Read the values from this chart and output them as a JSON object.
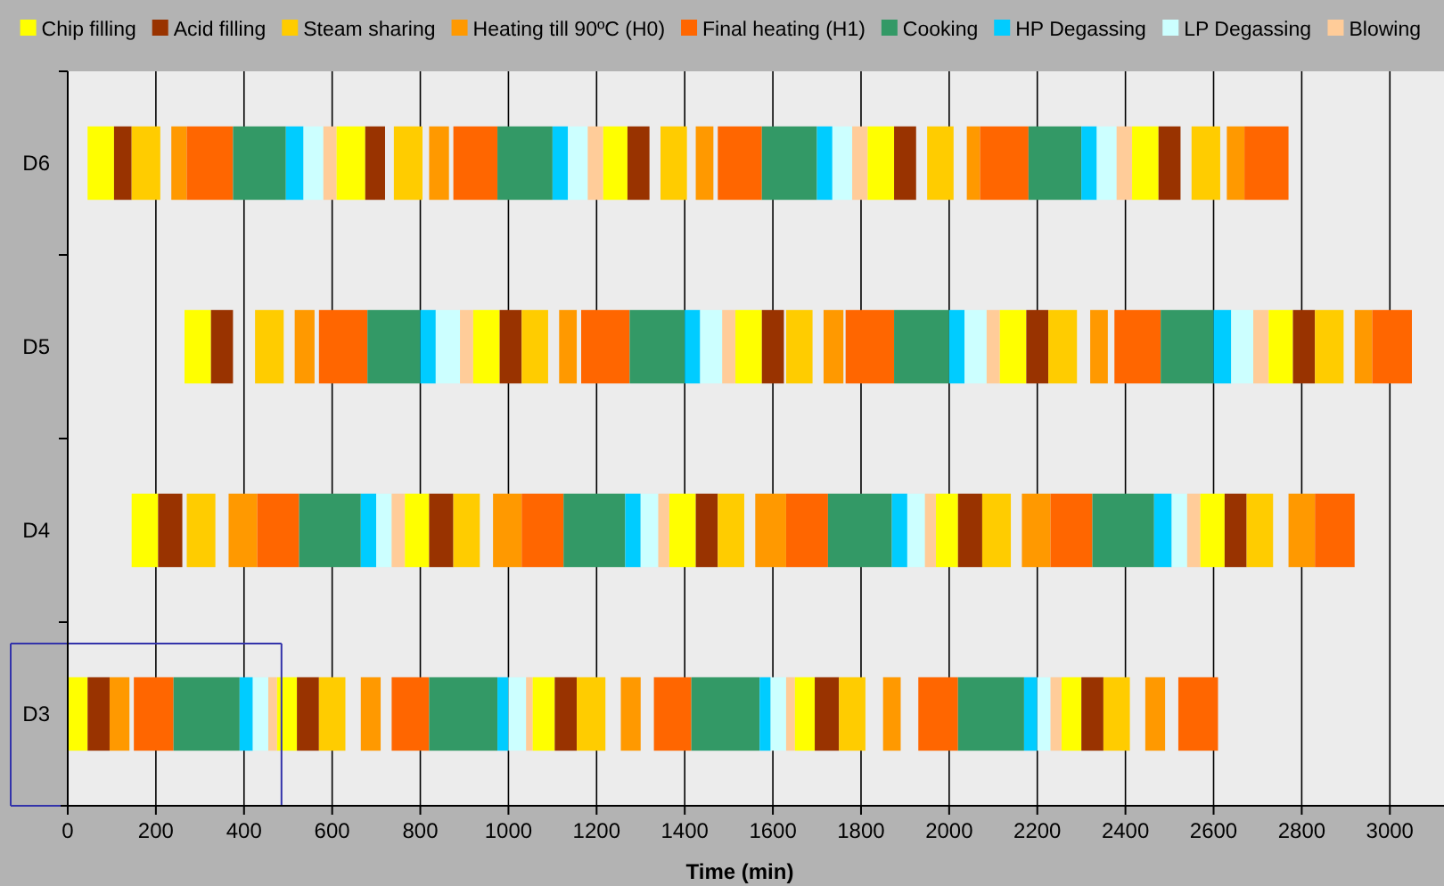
{
  "chart_data": {
    "type": "bar",
    "orientation": "horizontal",
    "xlabel": "Time (min)",
    "categories": [
      "D6",
      "D5",
      "D4",
      "D3"
    ],
    "xlim": [
      0,
      3050
    ],
    "xticks": [
      0,
      200,
      400,
      600,
      800,
      1000,
      1200,
      1400,
      1600,
      1800,
      2000,
      2200,
      2400,
      2600,
      2800,
      3000
    ],
    "grid": "x",
    "legend": "top",
    "series": [
      {
        "name": "Chip filling",
        "color": "#ffff00",
        "base": [
          45,
          265,
          145,
          0
        ],
        "values": [
          60,
          60,
          60,
          45
        ]
      },
      {
        "name": "Acid filling",
        "color": "#993300",
        "base": [
          105,
          325,
          205,
          45
        ],
        "values": [
          40,
          50,
          55,
          50
        ]
      },
      {
        "name": "Steam sharing",
        "color": "#ffcc00",
        "base": [
          145,
          425,
          270,
          null
        ],
        "values": [
          65,
          65,
          65,
          null
        ]
      },
      {
        "name": "Heating till 90ºC (H0)",
        "color": "#ff9900",
        "base": [
          235,
          515,
          365,
          95
        ],
        "values": [
          35,
          45,
          65,
          45
        ]
      },
      {
        "name": "Final heating (H1)",
        "color": "#ff6600",
        "base": [
          270,
          570,
          430,
          150
        ],
        "values": [
          105,
          110,
          95,
          90
        ]
      },
      {
        "name": "Cooking",
        "color": "#339966",
        "base": [
          375,
          680,
          525,
          240
        ],
        "values": [
          120,
          120,
          140,
          150
        ]
      },
      {
        "name": "HP Degassing",
        "color": "#00ccff",
        "base": [
          495,
          800,
          665,
          390
        ],
        "values": [
          40,
          35,
          35,
          30
        ]
      },
      {
        "name": "LP Degassing",
        "color": "#ccffff",
        "base": [
          535,
          835,
          700,
          420
        ],
        "values": [
          45,
          55,
          35,
          35
        ]
      },
      {
        "name": "Blowing",
        "color": "#ffcc99",
        "base": [
          580,
          890,
          735,
          455
        ],
        "values": [
          30,
          30,
          30,
          20
        ]
      },
      {
        "color": "#ffff00",
        "base": [
          610,
          920,
          765,
          475
        ],
        "values": [
          65,
          60,
          55,
          45
        ]
      },
      {
        "color": "#993300",
        "base": [
          675,
          980,
          820,
          520
        ],
        "values": [
          45,
          50,
          55,
          50
        ]
      },
      {
        "color": "#ffcc00",
        "base": [
          740,
          1030,
          875,
          570
        ],
        "values": [
          65,
          60,
          60,
          60
        ]
      },
      {
        "color": "#ff9900",
        "base": [
          820,
          1115,
          965,
          665
        ],
        "values": [
          45,
          40,
          65,
          45
        ]
      },
      {
        "color": "#ff6600",
        "base": [
          875,
          1165,
          1030,
          735
        ],
        "values": [
          100,
          110,
          95,
          85
        ]
      },
      {
        "color": "#339966",
        "base": [
          975,
          1275,
          1125,
          820
        ],
        "values": [
          125,
          125,
          140,
          155
        ]
      },
      {
        "color": "#00ccff",
        "base": [
          1100,
          1400,
          1265,
          975
        ],
        "values": [
          35,
          35,
          35,
          25
        ]
      },
      {
        "color": "#ccffff",
        "base": [
          1135,
          1435,
          1300,
          1000
        ],
        "values": [
          45,
          50,
          40,
          40
        ]
      },
      {
        "color": "#ffcc99",
        "base": [
          1180,
          1485,
          1340,
          1040
        ],
        "values": [
          35,
          30,
          25,
          15
        ]
      },
      {
        "color": "#ffff00",
        "base": [
          1215,
          1515,
          1365,
          1055
        ],
        "values": [
          55,
          60,
          60,
          50
        ]
      },
      {
        "color": "#993300",
        "base": [
          1270,
          1575,
          1425,
          1105
        ],
        "values": [
          50,
          50,
          50,
          50
        ]
      },
      {
        "color": "#ffcc00",
        "base": [
          1345,
          1630,
          1475,
          1155
        ],
        "values": [
          60,
          60,
          60,
          65
        ]
      },
      {
        "color": "#ff9900",
        "base": [
          1425,
          1715,
          1560,
          1255
        ],
        "values": [
          40,
          45,
          70,
          45
        ]
      },
      {
        "color": "#ff6600",
        "base": [
          1475,
          1765,
          1630,
          1330
        ],
        "values": [
          100,
          110,
          95,
          85
        ]
      },
      {
        "color": "#339966",
        "base": [
          1575,
          1875,
          1725,
          1415
        ],
        "values": [
          125,
          125,
          145,
          155
        ]
      },
      {
        "color": "#00ccff",
        "base": [
          1700,
          2000,
          1870,
          1570
        ],
        "values": [
          35,
          35,
          35,
          25
        ]
      },
      {
        "color": "#ccffff",
        "base": [
          1735,
          2035,
          1905,
          1595
        ],
        "values": [
          45,
          50,
          40,
          35
        ]
      },
      {
        "color": "#ffcc99",
        "base": [
          1780,
          2085,
          1945,
          1630
        ],
        "values": [
          35,
          30,
          25,
          20
        ]
      },
      {
        "color": "#ffff00",
        "base": [
          1815,
          2115,
          1970,
          1650
        ],
        "values": [
          60,
          60,
          50,
          45
        ]
      },
      {
        "color": "#993300",
        "base": [
          1875,
          2175,
          2020,
          1695
        ],
        "values": [
          50,
          50,
          55,
          55
        ]
      },
      {
        "color": "#ffcc00",
        "base": [
          1950,
          2225,
          2075,
          1750
        ],
        "values": [
          60,
          65,
          65,
          60
        ]
      },
      {
        "color": "#ff9900",
        "base": [
          2040,
          2320,
          2165,
          1850
        ],
        "values": [
          30,
          40,
          65,
          40
        ]
      },
      {
        "color": "#ff6600",
        "base": [
          2070,
          2375,
          2230,
          1930
        ],
        "values": [
          110,
          105,
          95,
          90
        ]
      },
      {
        "color": "#339966",
        "base": [
          2180,
          2480,
          2325,
          2020
        ],
        "values": [
          120,
          120,
          140,
          150
        ]
      },
      {
        "color": "#00ccff",
        "base": [
          2300,
          2600,
          2465,
          2170
        ],
        "values": [
          35,
          40,
          40,
          30
        ]
      },
      {
        "color": "#ccffff",
        "base": [
          2335,
          2640,
          2505,
          2200
        ],
        "values": [
          45,
          50,
          35,
          30
        ]
      },
      {
        "color": "#ffcc99",
        "base": [
          2380,
          2690,
          2540,
          2230
        ],
        "values": [
          35,
          35,
          30,
          25
        ]
      },
      {
        "color": "#ffff00",
        "base": [
          2415,
          2725,
          2570,
          2255
        ],
        "values": [
          60,
          55,
          55,
          45
        ]
      },
      {
        "color": "#993300",
        "base": [
          2475,
          2780,
          2625,
          2300
        ],
        "values": [
          50,
          50,
          50,
          50
        ]
      },
      {
        "color": "#ffcc00",
        "base": [
          2550,
          2830,
          2675,
          2350
        ],
        "values": [
          65,
          65,
          60,
          60
        ]
      },
      {
        "color": "#ff9900",
        "base": [
          2630,
          2920,
          2770,
          2445
        ],
        "values": [
          40,
          40,
          60,
          45
        ]
      },
      {
        "color": "#ff6600",
        "base": [
          2670,
          2960,
          2830,
          2520
        ],
        "values": [
          100,
          90,
          90,
          90
        ]
      }
    ]
  }
}
